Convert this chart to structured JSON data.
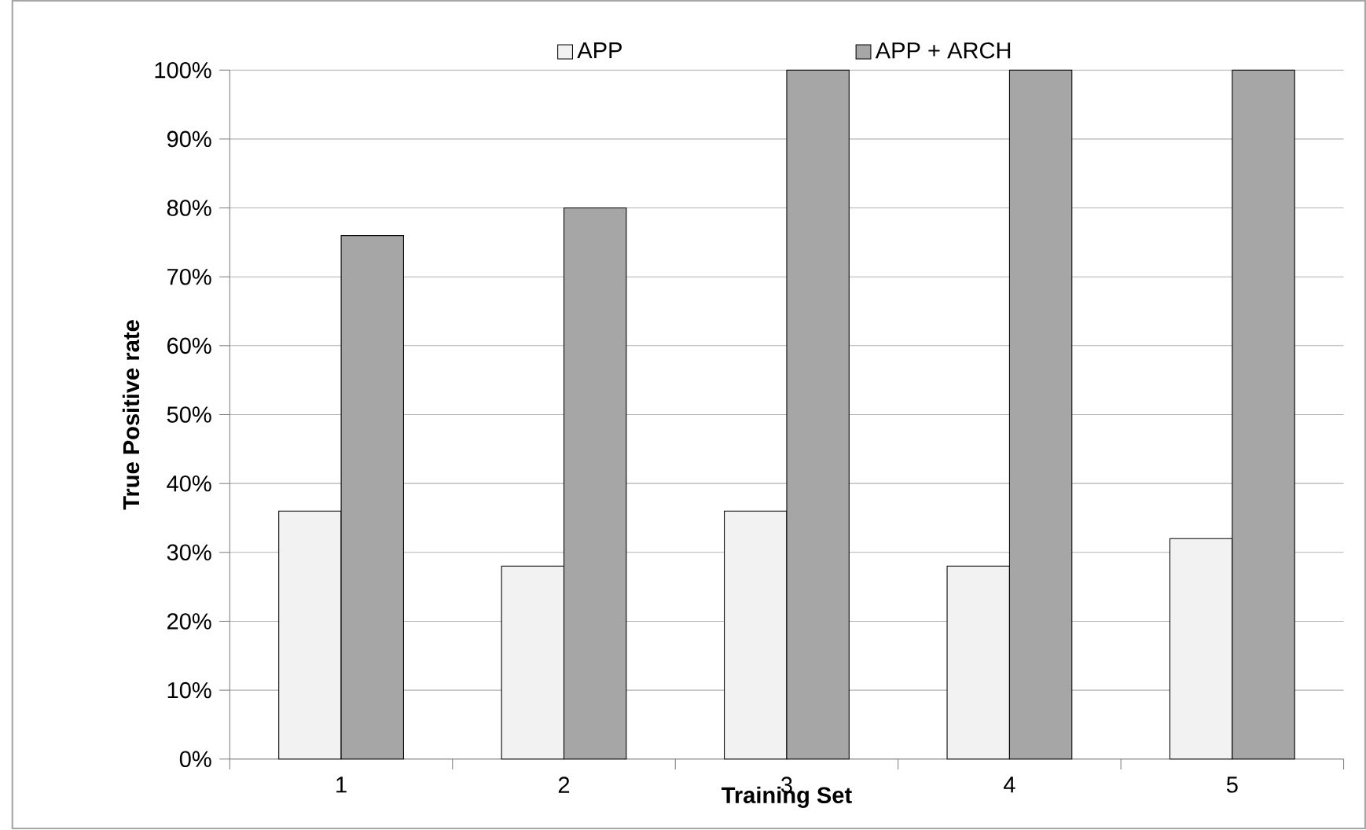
{
  "chart_data": {
    "type": "bar",
    "xlabel": "Training Set",
    "ylabel": "True Positive rate",
    "categories": [
      "1",
      "2",
      "3",
      "4",
      "5"
    ],
    "series": [
      {
        "name": "APP",
        "color": "#f2f2f2",
        "values": [
          36,
          28,
          36,
          28,
          32
        ]
      },
      {
        "name": "APP + ARCH",
        "color": "#a6a6a6",
        "values": [
          76,
          80,
          100,
          100,
          100
        ]
      }
    ],
    "ylim": [
      0,
      100
    ],
    "yticks": [
      {
        "value": 0,
        "label": "0%"
      },
      {
        "value": 10,
        "label": "10%"
      },
      {
        "value": 20,
        "label": "20%"
      },
      {
        "value": 30,
        "label": "30%"
      },
      {
        "value": 40,
        "label": "40%"
      },
      {
        "value": 50,
        "label": "50%"
      },
      {
        "value": 60,
        "label": "60%"
      },
      {
        "value": 70,
        "label": "70%"
      },
      {
        "value": 80,
        "label": "80%"
      },
      {
        "value": 90,
        "label": "90%"
      },
      {
        "value": 100,
        "label": "100%"
      }
    ],
    "grid": "y",
    "legend": "top"
  }
}
